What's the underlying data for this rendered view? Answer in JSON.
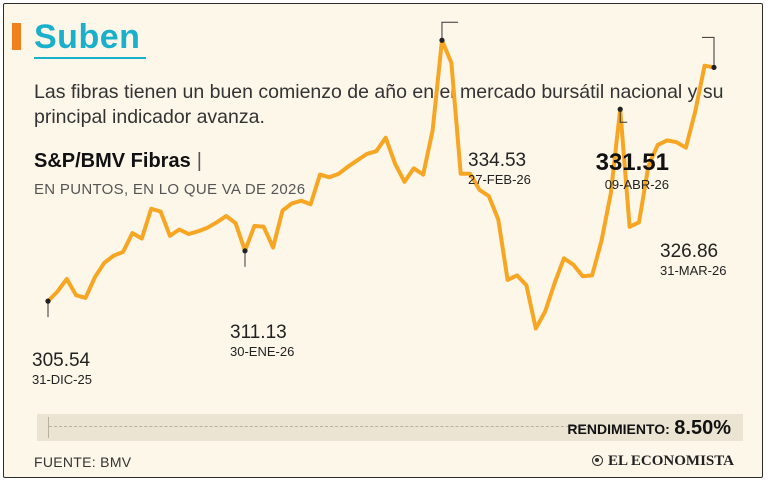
{
  "header": {
    "headline": "Suben",
    "subtitle": "Las fibras tienen un buen comienzo de año en el mercado bursátil nacional y su principal indicador avanza."
  },
  "colors": {
    "accent": "#f07f1e",
    "headline": "#1ab0cc",
    "line": "#f6a623",
    "marker": "#222222"
  },
  "chart_data": {
    "type": "line",
    "title": "S&P/BMV Fibras",
    "subtitle": "EN PUNTOS, EN LO QUE VA DE 2026",
    "xlabel": "",
    "ylabel": "",
    "grid": false,
    "ylim": [
      300,
      338
    ],
    "series": [
      {
        "name": "",
        "values": [
          305.54,
          306.6,
          308.0,
          306.2,
          305.9,
          308.2,
          309.8,
          310.6,
          311.0,
          313.1,
          312.5,
          315.8,
          315.5,
          312.8,
          313.5,
          313.0,
          313.3,
          313.7,
          314.3,
          315.0,
          314.2,
          311.13,
          313.9,
          313.8,
          311.5,
          315.6,
          316.4,
          316.7,
          316.3,
          319.6,
          319.3,
          319.7,
          320.5,
          321.2,
          321.9,
          322.2,
          323.7,
          320.8,
          318.8,
          320.3,
          319.6,
          324.5,
          334.53,
          332.0,
          319.7,
          319.7,
          317.9,
          317.2,
          314.6,
          307.9,
          308.4,
          307.3,
          302.5,
          304.4,
          307.5,
          310.3,
          309.6,
          308.3,
          308.4,
          312.2,
          317.5,
          326.86,
          313.8,
          314.3,
          320.5,
          322.9,
          323.4,
          323.2,
          322.6,
          326.6,
          331.7,
          331.51
        ]
      }
    ],
    "annotations": [
      {
        "value": "305.54",
        "date": "31-DIC-25"
      },
      {
        "value": "311.13",
        "date": "30-ENE-26"
      },
      {
        "value": "334.53",
        "date": "27-FEB-26"
      },
      {
        "value": "326.86",
        "date": "31-MAR-26"
      },
      {
        "value": "331.51",
        "date": "09-ABR-26"
      }
    ]
  },
  "performance": {
    "label": "RENDIMIENTO:",
    "value": "8.50%"
  },
  "footer": {
    "source": "FUENTE: BMV",
    "brand": "EL ECONOMISTA",
    "brand_icon": "brand-logo-icon"
  }
}
